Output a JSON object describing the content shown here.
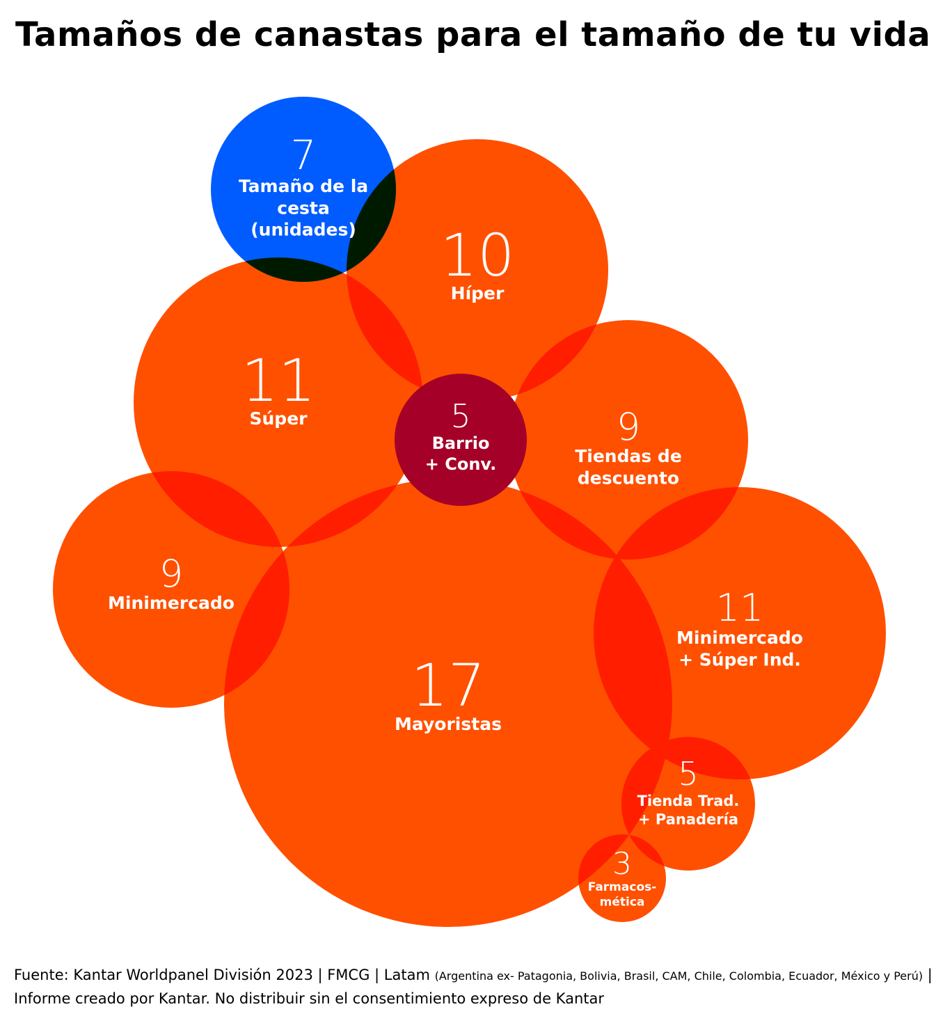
{
  "title": "Tamaños de canastas para el tamaño de tu vida",
  "colors": {
    "channel_bubble": "#ff5000",
    "overlap": "#ff1e00",
    "reference_bubble": "#005cff",
    "reference_overlap": "#001a00",
    "center_bubble": "#a50028",
    "text": "#ffffff"
  },
  "chart_data": {
    "type": "bubble",
    "measure": "Tamaño de la cesta (unidades)",
    "bubbles": [
      {
        "label": "Tamaño de la cesta (unidades)",
        "value": 7,
        "role": "legend"
      },
      {
        "label": "Híper",
        "value": 10
      },
      {
        "label": "Súper",
        "value": 11
      },
      {
        "label": "Barrio + Conv.",
        "value": 5,
        "role": "center"
      },
      {
        "label": "Tiendas de descuento",
        "value": 9
      },
      {
        "label": "Minimercado",
        "value": 9
      },
      {
        "label": "Mayoristas",
        "value": 17
      },
      {
        "label": "Minimercado + Súper Ind.",
        "value": 11
      },
      {
        "label": "Tienda Trad. + Panadería",
        "value": 5
      },
      {
        "label": "Farmacos-mética",
        "value": 3
      }
    ]
  },
  "source": {
    "main": "Fuente: Kantar Worldpanel División 2023 | FMCG | Latam ",
    "countries": "(Argentina ex- Patagonia, Bolivia, Brasil, CAM, Chile, Colombia, Ecuador, México y Perú)",
    "tail": " | Informe creado por Kantar. No distribuir sin el consentimiento expreso de Kantar"
  }
}
